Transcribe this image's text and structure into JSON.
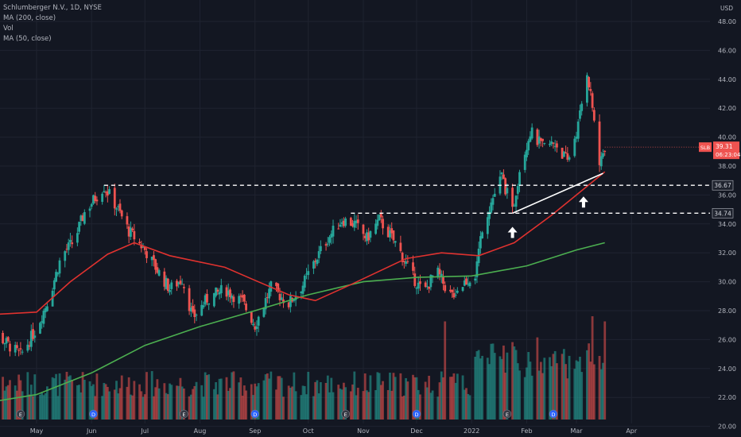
{
  "legend": {
    "symbol": "Schlumberger N.V., 1D, NYSE",
    "ma200": "MA (200, close)",
    "vol": "Vol",
    "ma50": "MA (50, close)"
  },
  "currency": "USD",
  "price_badge": {
    "ticker": "SLB",
    "price": "39.31",
    "countdown": "06:23:04"
  },
  "colors": {
    "background": "#131722",
    "up": "#26a69a",
    "down": "#ef5350",
    "ma50": "#e0322f",
    "ma200": "#4caf50",
    "axis_text": "#b2b5be",
    "grid": "#1f2330",
    "annotation": "#ffffff"
  },
  "chart_data": {
    "type": "candlestick",
    "title": "Schlumberger N.V., 1D, NYSE",
    "ylim": [
      19,
      49
    ],
    "yticks": [
      20,
      22,
      24,
      26,
      28,
      30,
      32,
      34,
      36,
      38,
      40,
      42,
      44,
      46,
      48
    ],
    "ytick_labels": [
      "20.00",
      "22.00",
      "24.00",
      "26.00",
      "28.00",
      "30.00",
      "32.00",
      "34.00",
      "36.00",
      "38.00",
      "40.00",
      "42.00",
      "44.00",
      "46.00",
      "48.00"
    ],
    "xticks": [
      {
        "label": "May",
        "date": "2021-05-01"
      },
      {
        "label": "Jun",
        "date": "2021-06-01"
      },
      {
        "label": "Jul",
        "date": "2021-07-01"
      },
      {
        "label": "Aug",
        "date": "2021-08-01"
      },
      {
        "label": "Sep",
        "date": "2021-09-01"
      },
      {
        "label": "Oct",
        "date": "2021-10-01"
      },
      {
        "label": "Nov",
        "date": "2021-11-01"
      },
      {
        "label": "Dec",
        "date": "2021-12-01"
      },
      {
        "label": "2022",
        "date": "2022-01-01"
      },
      {
        "label": "Feb",
        "date": "2022-02-01"
      },
      {
        "label": "Mar",
        "date": "2022-03-01"
      },
      {
        "label": "Apr",
        "date": "2022-04-01"
      }
    ],
    "price_path": [
      [
        "2021-04-01",
        27.0
      ],
      [
        "2021-04-10",
        26.2
      ],
      [
        "2021-04-22",
        24.9
      ],
      [
        "2021-05-01",
        26.8
      ],
      [
        "2021-05-08",
        28.9
      ],
      [
        "2021-05-15",
        31.8
      ],
      [
        "2021-05-22",
        32.8
      ],
      [
        "2021-05-28",
        34.8
      ],
      [
        "2021-06-03",
        35.8
      ],
      [
        "2021-06-08",
        36.6
      ],
      [
        "2021-06-15",
        35.2
      ],
      [
        "2021-06-22",
        33.5
      ],
      [
        "2021-07-01",
        32.2
      ],
      [
        "2021-07-08",
        30.8
      ],
      [
        "2021-07-15",
        29.5
      ],
      [
        "2021-07-22",
        30.2
      ],
      [
        "2021-07-28",
        27.5
      ],
      [
        "2021-08-05",
        28.8
      ],
      [
        "2021-08-15",
        29.5
      ],
      [
        "2021-08-25",
        28.6
      ],
      [
        "2021-09-01",
        27.0
      ],
      [
        "2021-09-10",
        29.6
      ],
      [
        "2021-09-20",
        28.5
      ],
      [
        "2021-09-28",
        29.8
      ],
      [
        "2021-10-05",
        31.5
      ],
      [
        "2021-10-12",
        33.0
      ],
      [
        "2021-10-20",
        34.3
      ],
      [
        "2021-10-27",
        34.0
      ],
      [
        "2021-11-03",
        33.0
      ],
      [
        "2021-11-10",
        34.3
      ],
      [
        "2021-11-20",
        32.5
      ],
      [
        "2021-11-28",
        30.5
      ],
      [
        "2021-12-05",
        29.2
      ],
      [
        "2021-12-12",
        30.8
      ],
      [
        "2021-12-20",
        29.0
      ],
      [
        "2021-12-28",
        30.0
      ],
      [
        "2022-01-03",
        30.5
      ],
      [
        "2022-01-07",
        33.8
      ],
      [
        "2022-01-12",
        35.5
      ],
      [
        "2022-01-18",
        37.3
      ],
      [
        "2022-01-24",
        34.8
      ],
      [
        "2022-01-28",
        37.8
      ],
      [
        "2022-02-03",
        40.4
      ],
      [
        "2022-02-10",
        39.3
      ],
      [
        "2022-02-17",
        39.6
      ],
      [
        "2022-02-24",
        38.3
      ],
      [
        "2022-03-02",
        40.8
      ],
      [
        "2022-03-07",
        44.6
      ],
      [
        "2022-03-10",
        42.1
      ],
      [
        "2022-03-14",
        38.0
      ],
      [
        "2022-03-17",
        39.31
      ]
    ],
    "ma50_path": [
      [
        "2021-04-01",
        27.7
      ],
      [
        "2021-05-01",
        27.9
      ],
      [
        "2021-05-20",
        30.0
      ],
      [
        "2021-06-10",
        31.9
      ],
      [
        "2021-06-25",
        32.7
      ],
      [
        "2021-07-15",
        31.8
      ],
      [
        "2021-08-15",
        31.0
      ],
      [
        "2021-09-01",
        30.1
      ],
      [
        "2021-09-20",
        29.1
      ],
      [
        "2021-10-05",
        28.7
      ],
      [
        "2021-10-25",
        29.8
      ],
      [
        "2021-11-25",
        31.6
      ],
      [
        "2021-12-15",
        32.0
      ],
      [
        "2022-01-05",
        31.8
      ],
      [
        "2022-01-25",
        32.7
      ],
      [
        "2022-02-15",
        34.6
      ],
      [
        "2022-03-01",
        36.0
      ],
      [
        "2022-03-17",
        37.6
      ]
    ],
    "ma200_path": [
      [
        "2021-04-01",
        21.6
      ],
      [
        "2021-05-01",
        22.2
      ],
      [
        "2021-06-01",
        23.7
      ],
      [
        "2021-07-01",
        25.6
      ],
      [
        "2021-08-01",
        26.9
      ],
      [
        "2021-09-01",
        28.0
      ],
      [
        "2021-10-01",
        29.1
      ],
      [
        "2021-11-01",
        30.0
      ],
      [
        "2021-12-01",
        30.3
      ],
      [
        "2022-01-01",
        30.4
      ],
      [
        "2022-02-01",
        31.1
      ],
      [
        "2022-03-01",
        32.2
      ],
      [
        "2022-03-17",
        32.7
      ]
    ],
    "horizontal_levels": [
      {
        "value": 36.67,
        "label": "36.67",
        "from": "2021-06-08"
      },
      {
        "value": 34.74,
        "label": "34.74",
        "from": "2021-10-25"
      }
    ],
    "trendline": {
      "from": [
        "2022-01-24",
        34.74
      ],
      "to": [
        "2022-03-16",
        37.5
      ]
    },
    "arrows": [
      {
        "date": "2022-01-24",
        "price": 33.8,
        "direction": "up"
      },
      {
        "date": "2022-03-05",
        "price": 35.9,
        "direction": "up"
      }
    ],
    "events": [
      {
        "date": "2021-04-22",
        "label": "E"
      },
      {
        "date": "2021-06-02",
        "label": "D"
      },
      {
        "date": "2021-07-23",
        "label": "E"
      },
      {
        "date": "2021-09-01",
        "label": "D"
      },
      {
        "date": "2021-10-22",
        "label": "E"
      },
      {
        "date": "2021-12-01",
        "label": "D"
      },
      {
        "date": "2022-01-21",
        "label": "E"
      },
      {
        "date": "2022-02-16",
        "label": "D"
      }
    ],
    "volume_spikes": [
      {
        "date": "2021-12-17",
        "ratio": 0.95
      },
      {
        "date": "2022-03-10",
        "ratio": 1.0
      },
      {
        "date": "2022-03-17",
        "ratio": 0.95
      }
    ],
    "last_price": 39.31
  }
}
